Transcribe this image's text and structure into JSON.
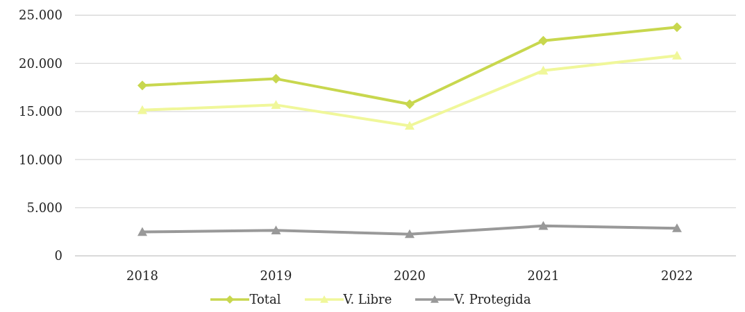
{
  "chart_data": {
    "type": "line",
    "categories": [
      "2018",
      "2019",
      "2020",
      "2021",
      "2022"
    ],
    "series": [
      {
        "name": "Total",
        "color": "#c8d74e",
        "marker": "diamond",
        "values": [
          17700,
          18400,
          15760,
          22360,
          23760
        ]
      },
      {
        "name": "V. Libre",
        "color": "#f0f79a",
        "marker": "triangle",
        "values": [
          15140,
          15680,
          13510,
          19250,
          20810
        ]
      },
      {
        "name": "V. Protegida",
        "color": "#999999",
        "marker": "triangle",
        "values": [
          2480,
          2640,
          2250,
          3110,
          2870
        ]
      }
    ],
    "ylim": [
      0,
      25000
    ],
    "yticks": [
      {
        "value": 0,
        "label": "0"
      },
      {
        "value": 5000,
        "label": "5.000"
      },
      {
        "value": 10000,
        "label": "10.000"
      },
      {
        "value": 15000,
        "label": "15.000"
      },
      {
        "value": 20000,
        "label": "20.000"
      },
      {
        "value": 25000,
        "label": "25.000"
      }
    ],
    "grid": "y",
    "legend": "bottom",
    "line_style": "solid"
  }
}
